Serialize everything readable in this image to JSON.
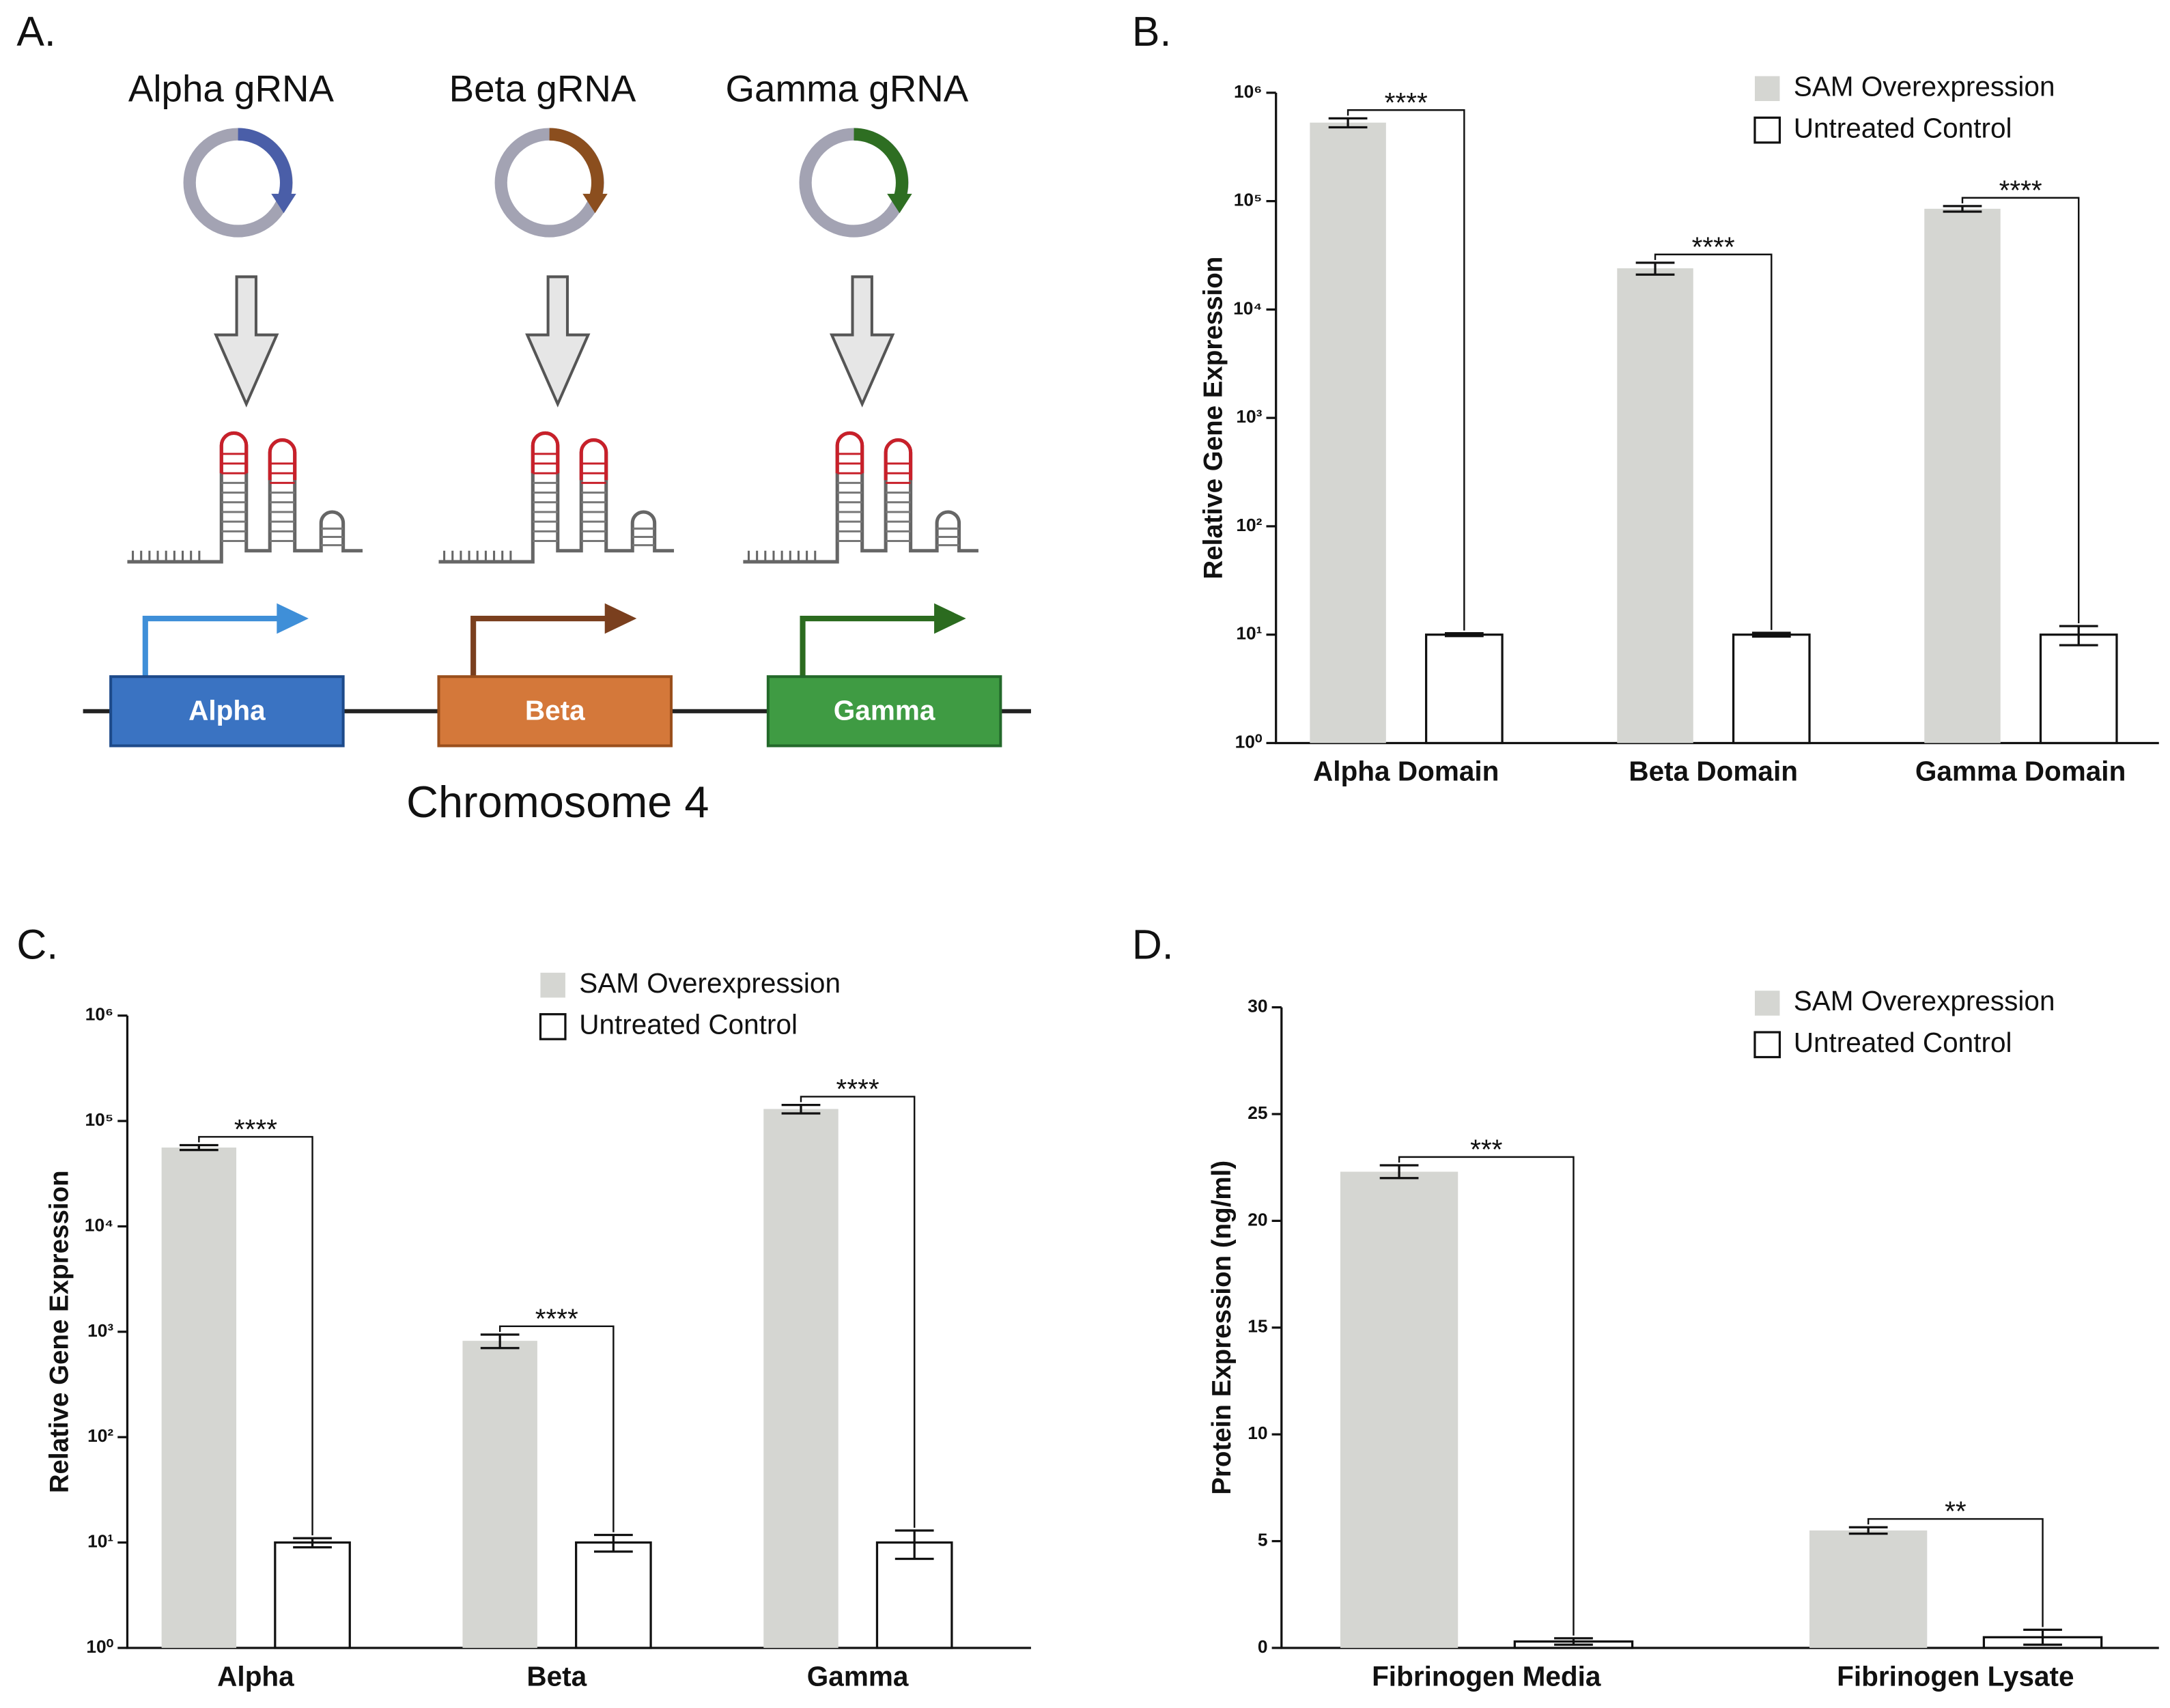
{
  "diagram": {
    "panel": "A.",
    "grnas": [
      "Alpha gRNA",
      "Beta gRNA",
      "Gamma gRNA"
    ],
    "genes": [
      "Alpha",
      "Beta",
      "Gamma"
    ],
    "chromosome": "Chromosome 4"
  },
  "chart_data": [
    {
      "type": "bar",
      "panel": "B.",
      "y_label": "Relative Gene Expression",
      "log_scale": true,
      "legend": "upper right",
      "categories": [
        "Alpha Domain",
        "Beta Domain",
        "Gamma Domain"
      ],
      "series": [
        {
          "name": "SAM Overexpression",
          "color": "#d5d6d2",
          "values": [
            530000,
            24000,
            85000
          ],
          "errors": [
            50000,
            3000,
            5000
          ]
        },
        {
          "name": "Untreated Control",
          "color": "#ffffff",
          "values": [
            10,
            10,
            10
          ],
          "errors": [
            0.3,
            0.4,
            2
          ]
        }
      ],
      "significance": [
        "****",
        "****",
        "****"
      ],
      "ylim": [
        1,
        1000000
      ],
      "yticks": [
        {
          "value": 1,
          "label": "10⁰"
        },
        {
          "value": 10,
          "label": "10¹"
        },
        {
          "value": 100,
          "label": "10²"
        },
        {
          "value": 1000,
          "label": "10³"
        },
        {
          "value": 10000,
          "label": "10⁴"
        },
        {
          "value": 100000,
          "label": "10⁵"
        },
        {
          "value": 1000000,
          "label": "10⁶"
        }
      ]
    },
    {
      "type": "bar",
      "panel": "C.",
      "y_label": "Relative Gene Expression",
      "log_scale": true,
      "legend": "upper center",
      "categories": [
        "Alpha",
        "Beta",
        "Gamma"
      ],
      "series": [
        {
          "name": "SAM Overexpression",
          "color": "#d5d6d2",
          "values": [
            56000,
            820,
            130000
          ],
          "errors": [
            3000,
            120,
            12000
          ]
        },
        {
          "name": "Untreated Control",
          "color": "#ffffff",
          "values": [
            10,
            10,
            10
          ],
          "errors": [
            1,
            1.8,
            3
          ]
        }
      ],
      "significance": [
        "****",
        "****",
        "****"
      ],
      "ylim": [
        1,
        1000000
      ],
      "yticks": [
        {
          "value": 1,
          "label": "10⁰"
        },
        {
          "value": 10,
          "label": "10¹"
        },
        {
          "value": 100,
          "label": "10²"
        },
        {
          "value": 1000,
          "label": "10³"
        },
        {
          "value": 10000,
          "label": "10⁴"
        },
        {
          "value": 100000,
          "label": "10⁵"
        },
        {
          "value": 1000000,
          "label": "10⁶"
        }
      ]
    },
    {
      "type": "bar",
      "panel": "D.",
      "y_label": "Protein Expression (ng/ml)",
      "log_scale": false,
      "legend": "upper right",
      "categories": [
        "Fibrinogen Media",
        "Fibrinogen Lysate"
      ],
      "series": [
        {
          "name": "SAM Overexpression",
          "color": "#d5d6d2",
          "values": [
            22.3,
            5.5
          ],
          "errors": [
            0.3,
            0.15
          ]
        },
        {
          "name": "Untreated Control",
          "color": "#ffffff",
          "values": [
            0.3,
            0.5
          ],
          "errors": [
            0.15,
            0.35
          ]
        }
      ],
      "significance": [
        "***",
        "**"
      ],
      "ylim": [
        0,
        30
      ],
      "yticks": [
        0,
        5,
        10,
        15,
        20,
        25,
        30
      ]
    }
  ]
}
